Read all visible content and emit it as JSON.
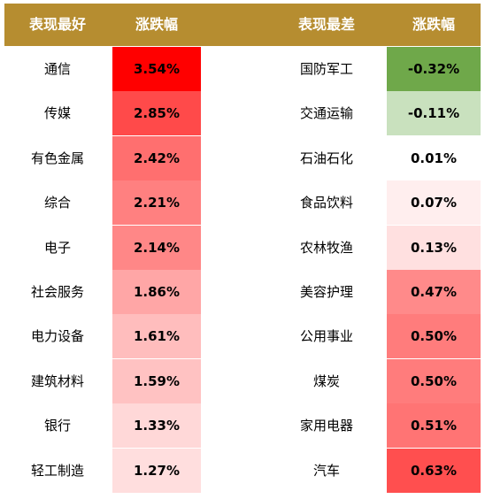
{
  "header": {
    "best_label": "表现最好",
    "best_change": "涨跌幅",
    "worst_label": "表现最差",
    "worst_change": "涨跌幅"
  },
  "best": [
    {
      "name": "通信",
      "change": "3.54%",
      "color": "#ff0000"
    },
    {
      "name": "传媒",
      "change": "2.85%",
      "color": "#ff4a4a"
    },
    {
      "name": "有色金属",
      "change": "2.42%",
      "color": "#ff6f6f"
    },
    {
      "name": "综合",
      "change": "2.21%",
      "color": "#ff8080"
    },
    {
      "name": "电子",
      "change": "2.14%",
      "color": "#ff8787"
    },
    {
      "name": "社会服务",
      "change": "1.86%",
      "color": "#ffa6a6"
    },
    {
      "name": "电力设备",
      "change": "1.61%",
      "color": "#ffbdbd"
    },
    {
      "name": "建筑材料",
      "change": "1.59%",
      "color": "#ffc2c2"
    },
    {
      "name": "银行",
      "change": "1.33%",
      "color": "#ffd8d8"
    },
    {
      "name": "轻工制造",
      "change": "1.27%",
      "color": "#ffdede"
    }
  ],
  "worst": [
    {
      "name": "国防军工",
      "change": "-0.32%",
      "color": "#6fa84a"
    },
    {
      "name": "交通运输",
      "change": "-0.11%",
      "color": "#c9e1be"
    },
    {
      "name": "石油石化",
      "change": "0.01%",
      "color": "#ffffff"
    },
    {
      "name": "食品饮料",
      "change": "0.07%",
      "color": "#ffeeee"
    },
    {
      "name": "农林牧渔",
      "change": "0.13%",
      "color": "#ffe0e0"
    },
    {
      "name": "美容护理",
      "change": "0.47%",
      "color": "#ff8a8a"
    },
    {
      "name": "公用事业",
      "change": "0.50%",
      "color": "#ff7c7c"
    },
    {
      "name": "煤炭",
      "change": "0.50%",
      "color": "#ff7c7c"
    },
    {
      "name": "家用电器",
      "change": "0.51%",
      "color": "#ff7474"
    },
    {
      "name": "汽车",
      "change": "0.63%",
      "color": "#ff4f4f"
    }
  ]
}
